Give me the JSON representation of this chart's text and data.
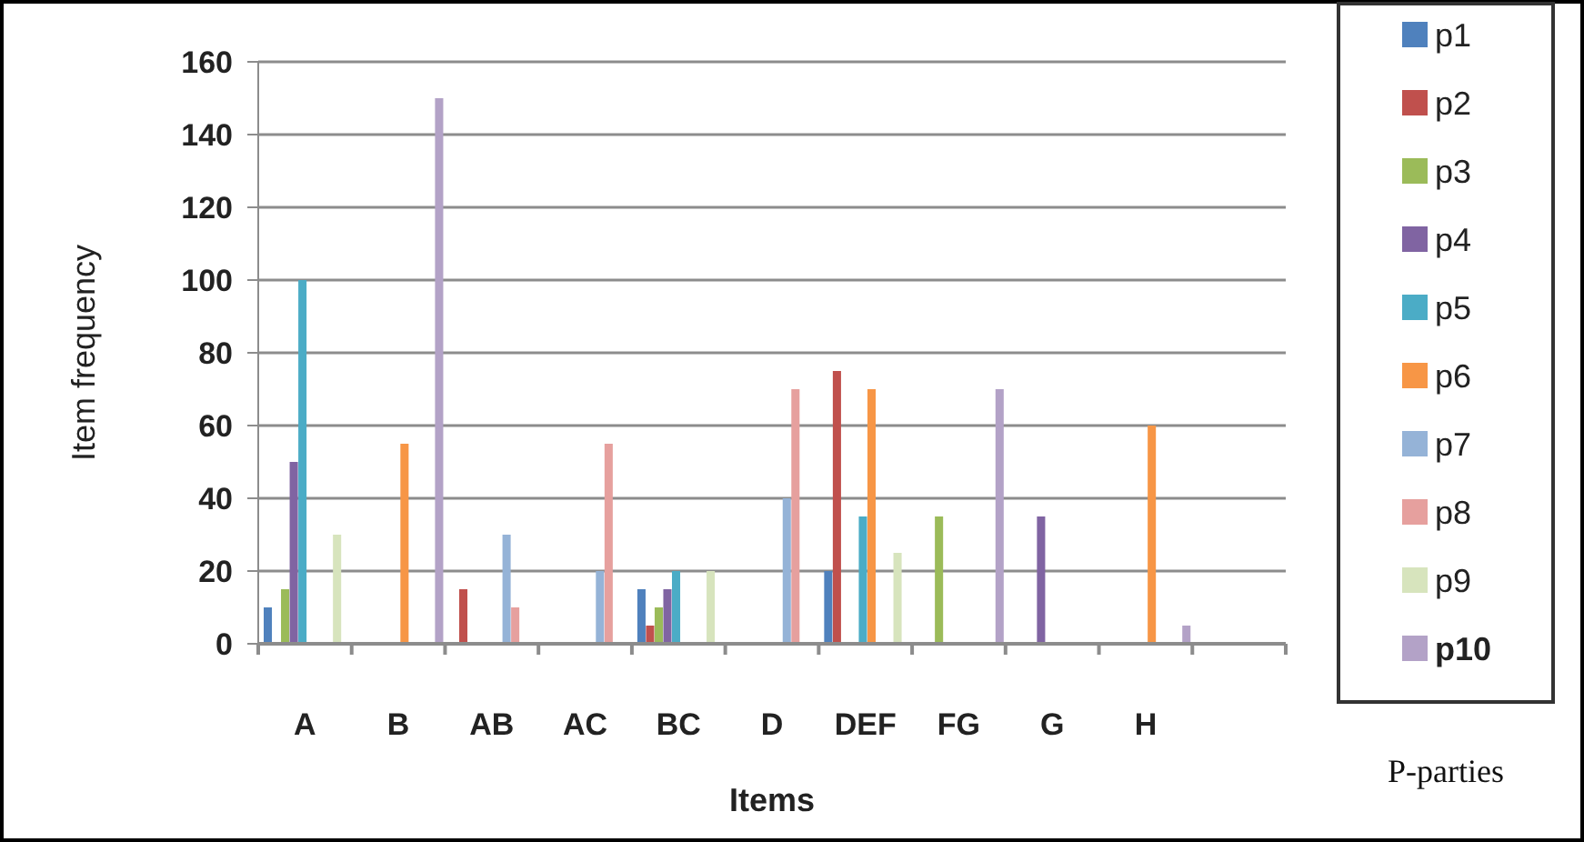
{
  "chart_data": {
    "type": "bar",
    "xlabel": "Items",
    "ylabel": "Item frequency",
    "legend_title": "P-parties",
    "legend": "right",
    "grid": "y",
    "categories": [
      "A",
      "B",
      "AB",
      "AC",
      "BC",
      "D",
      "DEF",
      "FG",
      "G",
      "H",
      null
    ],
    "ylim": [
      0,
      160
    ],
    "yticks": [
      0,
      20,
      40,
      60,
      80,
      100,
      120,
      140,
      160
    ],
    "series": [
      {
        "name": "p1",
        "color": "#4f81bd",
        "values": [
          10,
          null,
          null,
          null,
          15,
          null,
          20,
          null,
          null,
          null,
          null
        ]
      },
      {
        "name": "p2",
        "color": "#c0504d",
        "values": [
          null,
          null,
          15,
          null,
          5,
          null,
          75,
          null,
          null,
          null,
          null
        ]
      },
      {
        "name": "p3",
        "color": "#9bbb59",
        "values": [
          15,
          null,
          null,
          null,
          10,
          null,
          null,
          35,
          null,
          null,
          null
        ]
      },
      {
        "name": "p4",
        "color": "#8064a2",
        "values": [
          50,
          null,
          null,
          null,
          15,
          null,
          null,
          null,
          35,
          null,
          null
        ]
      },
      {
        "name": "p5",
        "color": "#4bacc6",
        "values": [
          100,
          null,
          null,
          null,
          20,
          null,
          35,
          null,
          null,
          null,
          null
        ]
      },
      {
        "name": "p6",
        "color": "#f79646",
        "values": [
          null,
          55,
          null,
          null,
          null,
          null,
          70,
          null,
          null,
          60,
          null
        ]
      },
      {
        "name": "p7",
        "color": "#95b3d7",
        "values": [
          null,
          null,
          30,
          20,
          null,
          40,
          null,
          null,
          null,
          null,
          null
        ]
      },
      {
        "name": "p8",
        "color": "#e6a09e",
        "values": [
          null,
          null,
          10,
          55,
          null,
          70,
          null,
          null,
          null,
          null,
          null
        ]
      },
      {
        "name": "p9",
        "color": "#d7e4bd",
        "values": [
          30,
          null,
          null,
          null,
          20,
          null,
          25,
          null,
          null,
          null,
          null
        ]
      },
      {
        "name": "p10",
        "color": "#b3a2c7",
        "values": [
          null,
          150,
          null,
          null,
          null,
          null,
          null,
          70,
          null,
          5,
          null
        ]
      }
    ]
  }
}
